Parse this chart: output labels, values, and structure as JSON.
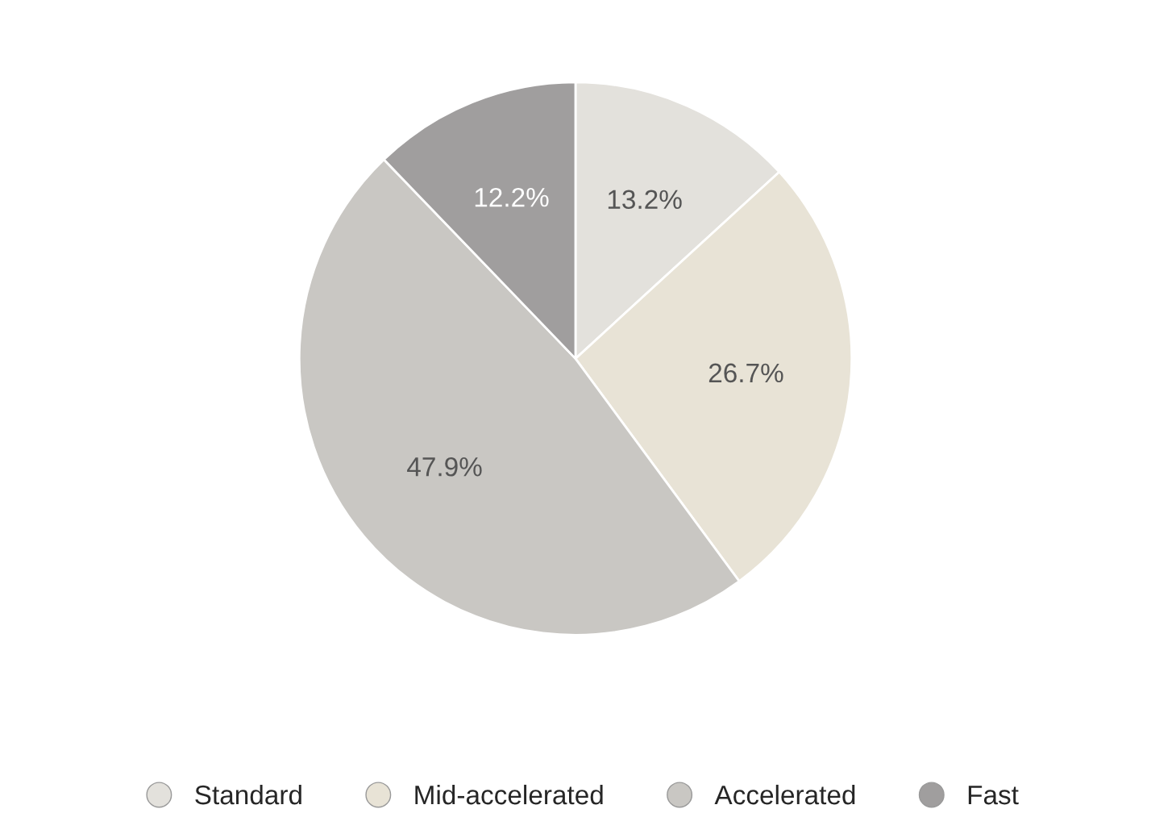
{
  "chart_data": {
    "type": "pie",
    "categories": [
      "Standard",
      "Mid-accelerated",
      "Accelerated",
      "Fast"
    ],
    "values": [
      13.2,
      26.7,
      47.9,
      12.2
    ],
    "colors": [
      "#e3e1dc",
      "#e8e3d6",
      "#c9c7c3",
      "#a09e9e"
    ],
    "value_labels": [
      "13.2%",
      "26.7%",
      "47.9%",
      "12.2%"
    ],
    "legend": "bottom"
  }
}
